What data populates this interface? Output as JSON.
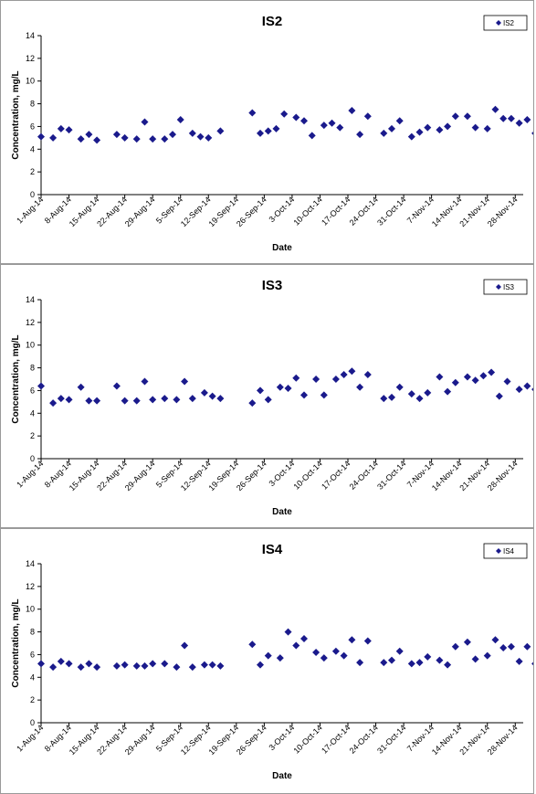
{
  "chart_data": [
    {
      "type": "scatter",
      "title": "IS2",
      "xlabel": "Date",
      "ylabel": "Concentration, mg/L",
      "ylim": [
        0,
        14
      ],
      "yticks": [
        0,
        2,
        4,
        6,
        8,
        10,
        12,
        14
      ],
      "xticks": [
        "1-Aug-14",
        "8-Aug-14",
        "15-Aug-14",
        "22-Aug-14",
        "29-Aug-14",
        "5-Sep-14",
        "12-Sep-14",
        "19-Sep-14",
        "26-Sep-14",
        "3-Oct-14",
        "10-Oct-14",
        "17-Oct-14",
        "24-Oct-14",
        "31-Oct-14",
        "7-Nov-14",
        "14-Nov-14",
        "21-Nov-14",
        "28-Nov-14"
      ],
      "xlim": [
        "2014-08-01",
        "2014-11-30"
      ],
      "grid": false,
      "legend": "top-right",
      "color": "#1a1a8c",
      "series": [
        {
          "name": "IS2",
          "points": [
            [
              "2014-08-01",
              5.1
            ],
            [
              "2014-08-04",
              5.0
            ],
            [
              "2014-08-06",
              5.8
            ],
            [
              "2014-08-08",
              5.7
            ],
            [
              "2014-08-11",
              4.9
            ],
            [
              "2014-08-13",
              5.3
            ],
            [
              "2014-08-15",
              4.8
            ],
            [
              "2014-08-20",
              5.3
            ],
            [
              "2014-08-22",
              5.0
            ],
            [
              "2014-08-25",
              4.9
            ],
            [
              "2014-08-27",
              6.4
            ],
            [
              "2014-08-29",
              4.9
            ],
            [
              "2014-09-01",
              4.9
            ],
            [
              "2014-09-03",
              5.3
            ],
            [
              "2014-09-05",
              6.6
            ],
            [
              "2014-09-08",
              5.4
            ],
            [
              "2014-09-10",
              5.1
            ],
            [
              "2014-09-12",
              5.0
            ],
            [
              "2014-09-15",
              5.6
            ],
            [
              "2014-09-23",
              7.2
            ],
            [
              "2014-09-25",
              5.4
            ],
            [
              "2014-09-27",
              5.6
            ],
            [
              "2014-09-29",
              5.8
            ],
            [
              "2014-10-01",
              7.1
            ],
            [
              "2014-10-04",
              6.8
            ],
            [
              "2014-10-06",
              6.5
            ],
            [
              "2014-10-08",
              5.2
            ],
            [
              "2014-10-11",
              6.1
            ],
            [
              "2014-10-13",
              6.3
            ],
            [
              "2014-10-15",
              5.9
            ],
            [
              "2014-10-18",
              7.4
            ],
            [
              "2014-10-20",
              5.3
            ],
            [
              "2014-10-22",
              6.9
            ],
            [
              "2014-10-26",
              5.4
            ],
            [
              "2014-10-28",
              5.8
            ],
            [
              "2014-10-30",
              6.5
            ],
            [
              "2014-11-02",
              5.1
            ],
            [
              "2014-11-04",
              5.5
            ],
            [
              "2014-11-06",
              5.9
            ],
            [
              "2014-11-09",
              5.7
            ],
            [
              "2014-11-11",
              6.0
            ],
            [
              "2014-11-13",
              6.9
            ],
            [
              "2014-11-16",
              6.9
            ],
            [
              "2014-11-18",
              5.9
            ],
            [
              "2014-11-21",
              5.8
            ],
            [
              "2014-11-23",
              7.5
            ],
            [
              "2014-11-25",
              6.7
            ],
            [
              "2014-11-27",
              6.7
            ],
            [
              "2014-11-29",
              6.3
            ],
            [
              "2014-12-01",
              6.6
            ],
            [
              "2014-12-03",
              5.4
            ]
          ]
        }
      ]
    },
    {
      "type": "scatter",
      "title": "IS3",
      "xlabel": "Date",
      "ylabel": "Concentration, mg/L",
      "ylim": [
        0,
        14
      ],
      "yticks": [
        0,
        2,
        4,
        6,
        8,
        10,
        12,
        14
      ],
      "xticks": [
        "1-Aug-14",
        "8-Aug-14",
        "15-Aug-14",
        "22-Aug-14",
        "29-Aug-14",
        "5-Sep-14",
        "12-Sep-14",
        "19-Sep-14",
        "26-Sep-14",
        "3-Oct-14",
        "10-Oct-14",
        "17-Oct-14",
        "24-Oct-14",
        "31-Oct-14",
        "7-Nov-14",
        "14-Nov-14",
        "21-Nov-14",
        "28-Nov-14"
      ],
      "xlim": [
        "2014-08-01",
        "2014-11-30"
      ],
      "grid": false,
      "legend": "top-right",
      "color": "#1a1a8c",
      "series": [
        {
          "name": "IS3",
          "points": [
            [
              "2014-08-01",
              6.4
            ],
            [
              "2014-08-04",
              4.9
            ],
            [
              "2014-08-06",
              5.3
            ],
            [
              "2014-08-08",
              5.2
            ],
            [
              "2014-08-11",
              6.3
            ],
            [
              "2014-08-13",
              5.1
            ],
            [
              "2014-08-15",
              5.1
            ],
            [
              "2014-08-20",
              6.4
            ],
            [
              "2014-08-22",
              5.1
            ],
            [
              "2014-08-25",
              5.1
            ],
            [
              "2014-08-27",
              6.8
            ],
            [
              "2014-08-29",
              5.2
            ],
            [
              "2014-09-01",
              5.3
            ],
            [
              "2014-09-04",
              5.2
            ],
            [
              "2014-09-06",
              6.8
            ],
            [
              "2014-09-08",
              5.3
            ],
            [
              "2014-09-11",
              5.8
            ],
            [
              "2014-09-13",
              5.5
            ],
            [
              "2014-09-15",
              5.3
            ],
            [
              "2014-09-23",
              4.9
            ],
            [
              "2014-09-25",
              6.0
            ],
            [
              "2014-09-27",
              5.2
            ],
            [
              "2014-09-30",
              6.3
            ],
            [
              "2014-10-02",
              6.2
            ],
            [
              "2014-10-04",
              7.1
            ],
            [
              "2014-10-06",
              5.6
            ],
            [
              "2014-10-09",
              7.0
            ],
            [
              "2014-10-11",
              5.6
            ],
            [
              "2014-10-14",
              7.0
            ],
            [
              "2014-10-16",
              7.4
            ],
            [
              "2014-10-18",
              7.7
            ],
            [
              "2014-10-20",
              6.3
            ],
            [
              "2014-10-22",
              7.4
            ],
            [
              "2014-10-26",
              5.3
            ],
            [
              "2014-10-28",
              5.4
            ],
            [
              "2014-10-30",
              6.3
            ],
            [
              "2014-11-02",
              5.7
            ],
            [
              "2014-11-04",
              5.3
            ],
            [
              "2014-11-06",
              5.8
            ],
            [
              "2014-11-09",
              7.2
            ],
            [
              "2014-11-11",
              5.9
            ],
            [
              "2014-11-13",
              6.7
            ],
            [
              "2014-11-16",
              7.2
            ],
            [
              "2014-11-18",
              6.9
            ],
            [
              "2014-11-20",
              7.3
            ],
            [
              "2014-11-22",
              7.6
            ],
            [
              "2014-11-24",
              5.5
            ],
            [
              "2014-11-26",
              6.8
            ],
            [
              "2014-11-29",
              6.1
            ],
            [
              "2014-12-01",
              6.4
            ],
            [
              "2014-12-03",
              6.1
            ]
          ]
        }
      ]
    },
    {
      "type": "scatter",
      "title": "IS4",
      "xlabel": "Date",
      "ylabel": "Concentration, mg/L",
      "ylim": [
        0,
        14
      ],
      "yticks": [
        0,
        2,
        4,
        6,
        8,
        10,
        12,
        14
      ],
      "xticks": [
        "1-Aug-14",
        "8-Aug-14",
        "15-Aug-14",
        "22-Aug-14",
        "29-Aug-14",
        "5-Sep-14",
        "12-Sep-14",
        "19-Sep-14",
        "26-Sep-14",
        "3-Oct-14",
        "10-Oct-14",
        "17-Oct-14",
        "24-Oct-14",
        "31-Oct-14",
        "7-Nov-14",
        "14-Nov-14",
        "21-Nov-14",
        "28-Nov-14"
      ],
      "xlim": [
        "2014-08-01",
        "2014-11-30"
      ],
      "grid": false,
      "legend": "top-right",
      "color": "#1a1a8c",
      "series": [
        {
          "name": "IS4",
          "points": [
            [
              "2014-08-01",
              5.2
            ],
            [
              "2014-08-04",
              4.9
            ],
            [
              "2014-08-06",
              5.4
            ],
            [
              "2014-08-08",
              5.2
            ],
            [
              "2014-08-11",
              4.9
            ],
            [
              "2014-08-13",
              5.2
            ],
            [
              "2014-08-15",
              4.9
            ],
            [
              "2014-08-20",
              5.0
            ],
            [
              "2014-08-22",
              5.1
            ],
            [
              "2014-08-25",
              5.0
            ],
            [
              "2014-08-27",
              5.0
            ],
            [
              "2014-08-29",
              5.2
            ],
            [
              "2014-09-01",
              5.2
            ],
            [
              "2014-09-04",
              4.9
            ],
            [
              "2014-09-06",
              6.8
            ],
            [
              "2014-09-08",
              4.9
            ],
            [
              "2014-09-11",
              5.1
            ],
            [
              "2014-09-13",
              5.1
            ],
            [
              "2014-09-15",
              5.0
            ],
            [
              "2014-09-23",
              6.9
            ],
            [
              "2014-09-25",
              5.1
            ],
            [
              "2014-09-27",
              5.9
            ],
            [
              "2014-09-30",
              5.7
            ],
            [
              "2014-10-02",
              8.0
            ],
            [
              "2014-10-04",
              6.8
            ],
            [
              "2014-10-06",
              7.4
            ],
            [
              "2014-10-09",
              6.2
            ],
            [
              "2014-10-11",
              5.7
            ],
            [
              "2014-10-14",
              6.3
            ],
            [
              "2014-10-16",
              5.9
            ],
            [
              "2014-10-18",
              7.3
            ],
            [
              "2014-10-20",
              5.3
            ],
            [
              "2014-10-22",
              7.2
            ],
            [
              "2014-10-26",
              5.3
            ],
            [
              "2014-10-28",
              5.5
            ],
            [
              "2014-10-30",
              6.3
            ],
            [
              "2014-11-02",
              5.2
            ],
            [
              "2014-11-04",
              5.3
            ],
            [
              "2014-11-06",
              5.8
            ],
            [
              "2014-11-09",
              5.5
            ],
            [
              "2014-11-11",
              5.1
            ],
            [
              "2014-11-13",
              6.7
            ],
            [
              "2014-11-16",
              7.1
            ],
            [
              "2014-11-18",
              5.6
            ],
            [
              "2014-11-21",
              5.9
            ],
            [
              "2014-11-23",
              7.3
            ],
            [
              "2014-11-25",
              6.6
            ],
            [
              "2014-11-27",
              6.7
            ],
            [
              "2014-11-29",
              5.4
            ],
            [
              "2014-12-01",
              6.7
            ],
            [
              "2014-12-03",
              5.2
            ]
          ]
        }
      ]
    }
  ]
}
